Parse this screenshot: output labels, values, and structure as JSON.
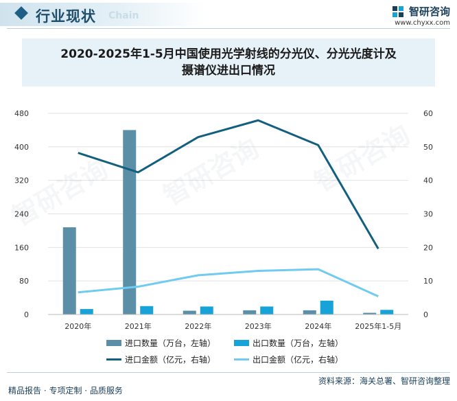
{
  "header": {
    "section_title": "行业现状",
    "section_subtitle": "Chain",
    "brand_name": "智研咨询",
    "brand_url": "www.chyxx.com"
  },
  "chart_data": {
    "type": "bar",
    "title": "2020-2025年1-5月中国使用光学射线的分光仪、分光光度计及摄谱仪进出口情况",
    "title_line1": "2020-2025年1-5月中国使用光学射线的分光仪、分光光度计及",
    "title_line2": "摄谱仪进出口情况",
    "categories": [
      "2020年",
      "2021年",
      "2022年",
      "2023年",
      "2024年",
      "2025年1-5月"
    ],
    "series": [
      {
        "name": "进口数量（万台，左轴）",
        "kind": "bar",
        "axis": "left",
        "color": "#5b8fa8",
        "values": [
          208,
          440,
          9,
          10,
          10,
          4
        ]
      },
      {
        "name": "出口数量（万台，左轴）",
        "kind": "bar",
        "axis": "left",
        "color": "#17a2d8",
        "values": [
          13,
          20,
          19,
          19,
          33,
          11
        ]
      },
      {
        "name": "进口金额（亿元，右轴）",
        "kind": "line",
        "axis": "right",
        "color": "#135f80",
        "values": [
          48.2,
          42.4,
          52.9,
          57.9,
          50.5,
          19.6
        ]
      },
      {
        "name": "出口金额（亿元，右轴）",
        "kind": "line",
        "axis": "right",
        "color": "#6fcbf0",
        "values": [
          6.6,
          8.3,
          11.7,
          13.0,
          13.5,
          5.4
        ]
      }
    ],
    "y_left": {
      "min": 0,
      "max": 480,
      "ticks": [
        "0",
        "80",
        "160",
        "240",
        "320",
        "400",
        "480"
      ]
    },
    "y_right": {
      "min": 0,
      "max": 60,
      "ticks": [
        "0",
        "10",
        "20",
        "30",
        "40",
        "50",
        "60"
      ]
    },
    "grid": true,
    "legend_position": "bottom"
  },
  "footer": {
    "left_text": "精品报告 · 专项定制 · 品质服务",
    "right_text": "资料来源：海关总署、智研咨询整理"
  },
  "watermark_text": "智研咨询"
}
